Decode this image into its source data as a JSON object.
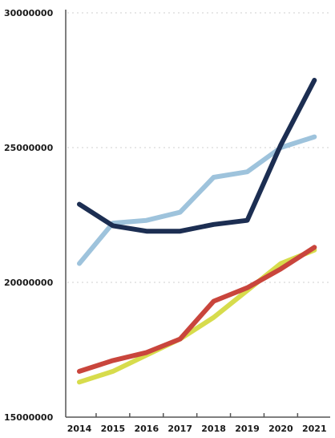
{
  "chart_data": {
    "type": "line",
    "title": "",
    "xlabel": "",
    "ylabel": "",
    "x": [
      "2014",
      "2015",
      "2016",
      "2017",
      "2018",
      "2019",
      "2020",
      "2021"
    ],
    "y_ticks": [
      "30000000",
      "25000000",
      "20000000",
      "15000000"
    ],
    "y_tick_values": [
      30000000,
      25000000,
      20000000,
      15000000
    ],
    "ylim": [
      15000000,
      30000000
    ],
    "grid": "horizontal dotted",
    "legend": "none",
    "series": [
      {
        "color": "#9ec3dc",
        "values": [
          20700000,
          22200000,
          22300000,
          22600000,
          23900000,
          24100000,
          25000000,
          25400000
        ]
      },
      {
        "color": "#1c2e52",
        "values": [
          22900000,
          22100000,
          21900000,
          21900000,
          22150000,
          22300000,
          25100000,
          27500000
        ]
      },
      {
        "color": "#d7dc4c",
        "values": [
          16300000,
          16700000,
          17300000,
          17900000,
          18700000,
          19700000,
          20700000,
          21200000
        ]
      },
      {
        "color": "#c9453c",
        "values": [
          16700000,
          17100000,
          17400000,
          17900000,
          19300000,
          19800000,
          20500000,
          21300000
        ]
      }
    ]
  }
}
